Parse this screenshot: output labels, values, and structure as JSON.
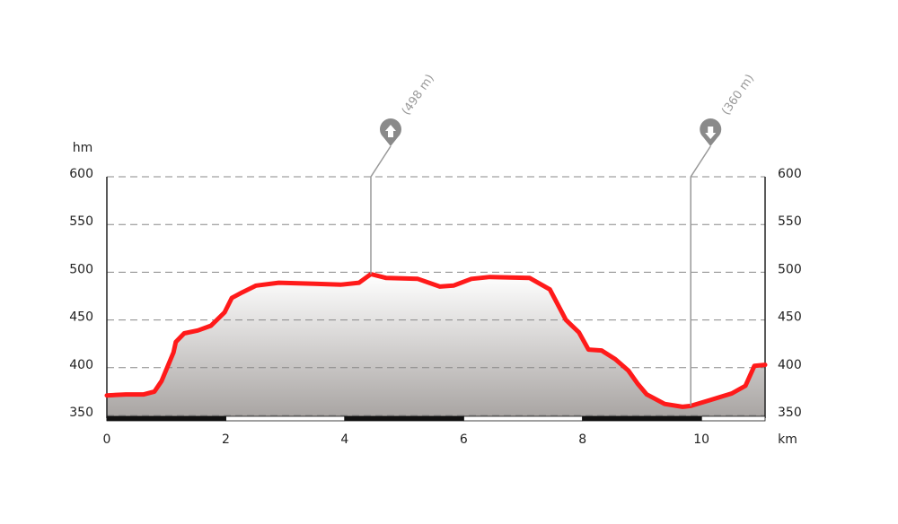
{
  "chart_data": {
    "type": "area",
    "y_label": "hm",
    "x_label": "km",
    "x": [
      0,
      0.32,
      0.62,
      0.8,
      0.92,
      1.04,
      1.12,
      1.16,
      1.3,
      1.53,
      1.75,
      1.98,
      2.1,
      2.28,
      2.51,
      2.89,
      3.49,
      3.94,
      4.24,
      4.44,
      4.7,
      5.23,
      5.6,
      5.83,
      6.13,
      6.44,
      7.11,
      7.45,
      7.72,
      7.94,
      8.1,
      8.32,
      8.55,
      8.77,
      8.93,
      9.08,
      9.38,
      9.68,
      9.82,
      10.14,
      10.51,
      10.74,
      10.89,
      11.07
    ],
    "values": [
      371,
      372,
      372,
      375,
      386,
      404,
      416,
      427,
      436,
      439,
      444,
      458,
      473,
      479,
      486,
      489,
      488,
      487,
      489,
      498,
      494,
      493,
      485,
      486,
      493,
      495,
      494,
      482,
      450,
      437,
      419,
      418,
      409,
      397,
      383,
      372,
      362,
      359,
      360,
      366,
      373,
      381,
      402,
      403
    ],
    "color": "#ff1a1a",
    "xlim": [
      0,
      11.07
    ],
    "xticks": [
      0,
      2,
      4,
      6,
      8,
      10
    ],
    "ylim": [
      350,
      600
    ],
    "yticks": [
      350,
      400,
      450,
      500,
      550,
      600
    ],
    "grid": true,
    "markers": [
      {
        "x": 4.44,
        "value": 498,
        "label": "(498 m)",
        "direction": "up"
      },
      {
        "x": 9.82,
        "value": 360,
        "label": "(360 m)",
        "direction": "down"
      }
    ]
  }
}
